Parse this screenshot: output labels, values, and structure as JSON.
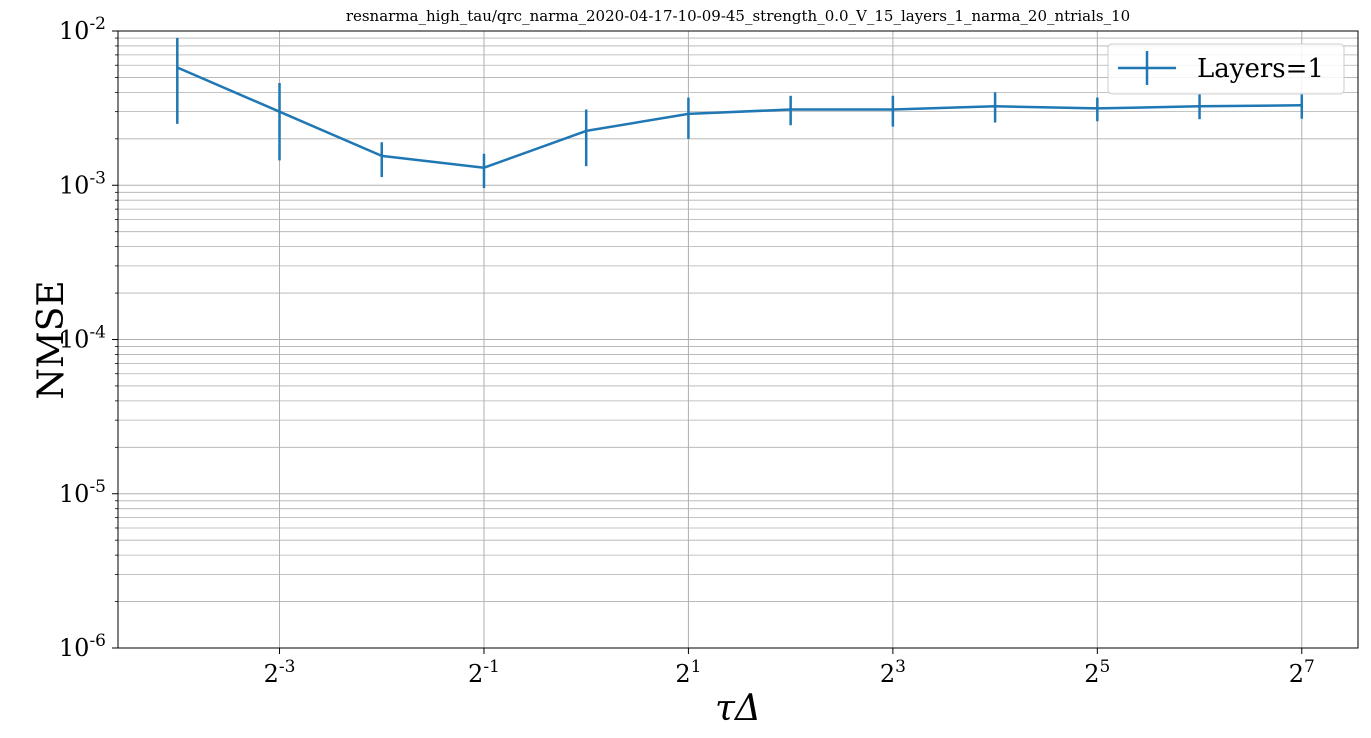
{
  "chart_data": {
    "type": "line",
    "title": "resnarma_high_tau/qrc_narma_2020-04-17-10-09-45_strength_0.0_V_15_layers_1_narma_20_ntrials_10",
    "xlabel": "τΔ",
    "ylabel": "NMSE",
    "xscale": "log2",
    "yscale": "log10",
    "xlim_exp2": [
      -4.58,
      7.55
    ],
    "ylim": [
      1e-06,
      0.01
    ],
    "grid": "major and minor",
    "legend_position": "top-right",
    "x_ticks": [
      {
        "base": "2",
        "exp": "-3",
        "value": 0.125
      },
      {
        "base": "2",
        "exp": "-1",
        "value": 0.5
      },
      {
        "base": "2",
        "exp": "1",
        "value": 2
      },
      {
        "base": "2",
        "exp": "3",
        "value": 8
      },
      {
        "base": "2",
        "exp": "5",
        "value": 32
      },
      {
        "base": "2",
        "exp": "7",
        "value": 128
      }
    ],
    "y_ticks": [
      {
        "base": "10",
        "exp": "-2",
        "value": 0.01
      },
      {
        "base": "10",
        "exp": "-3",
        "value": 0.001
      },
      {
        "base": "10",
        "exp": "-4",
        "value": 0.0001
      },
      {
        "base": "10",
        "exp": "-5",
        "value": 1e-05
      },
      {
        "base": "10",
        "exp": "-6",
        "value": 1e-06
      }
    ],
    "series": [
      {
        "name": "Layers=1",
        "color": "#1f77b4",
        "x": [
          0.0625,
          0.125,
          0.25,
          0.5,
          1,
          2,
          4,
          8,
          16,
          32,
          64,
          128
        ],
        "y": [
          0.0058,
          0.003,
          0.00155,
          0.0013,
          0.00225,
          0.0029,
          0.0031,
          0.0031,
          0.00325,
          0.00315,
          0.00325,
          0.0033
        ],
        "y_err_low": [
          0.0025,
          0.00145,
          0.00113,
          0.00096,
          0.00133,
          0.002,
          0.00245,
          0.0024,
          0.00255,
          0.0026,
          0.00268,
          0.0027
        ],
        "y_err_high": [
          0.009,
          0.0046,
          0.0019,
          0.0016,
          0.0031,
          0.0037,
          0.0038,
          0.0038,
          0.004,
          0.0037,
          0.0039,
          0.004
        ]
      }
    ]
  }
}
